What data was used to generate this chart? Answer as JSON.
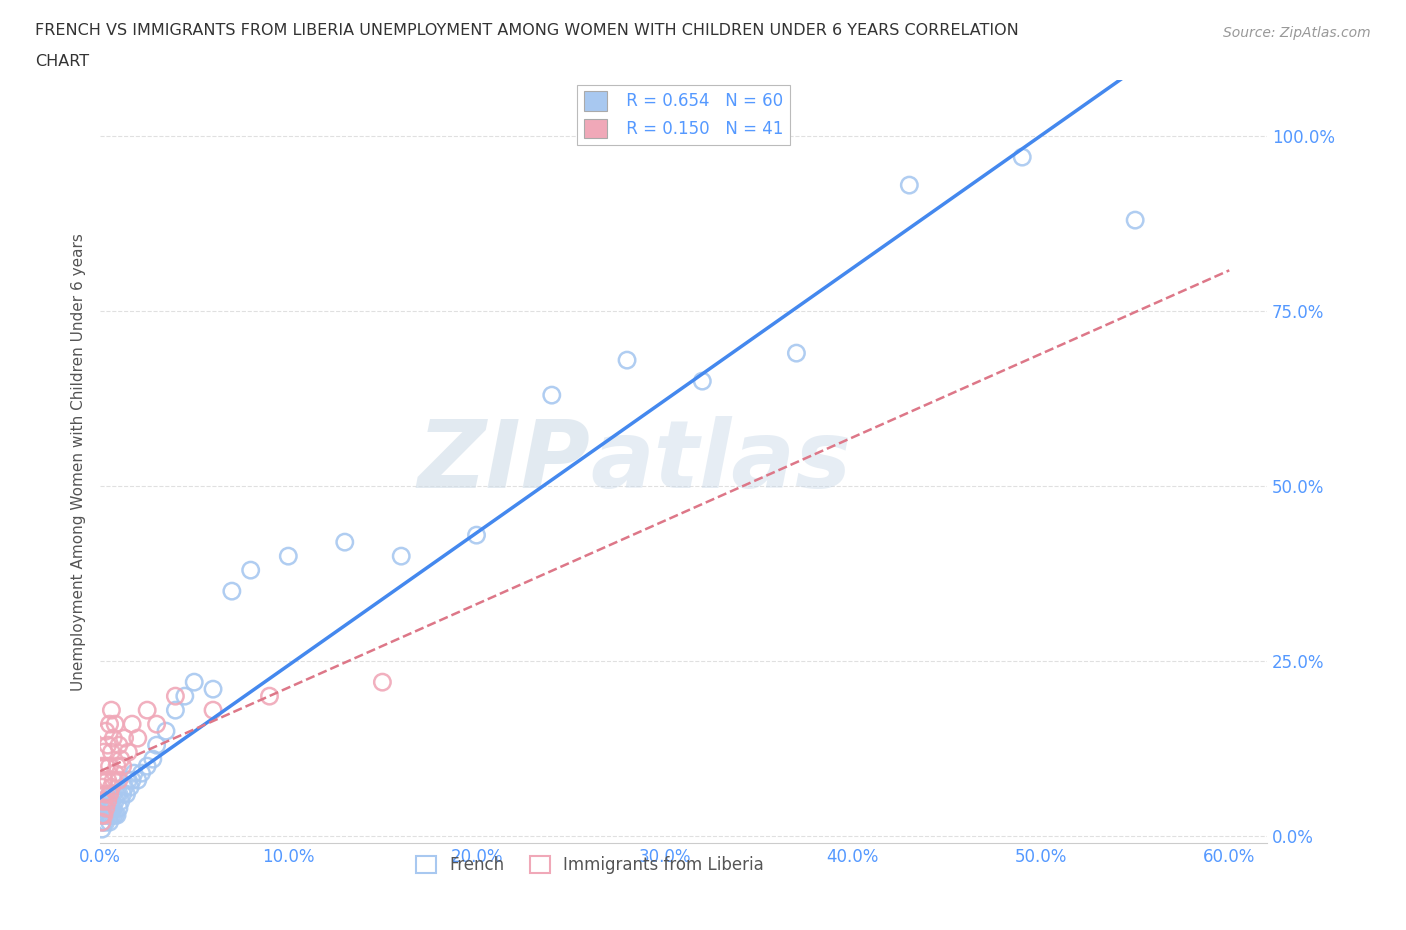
{
  "title_line1": "FRENCH VS IMMIGRANTS FROM LIBERIA UNEMPLOYMENT AMONG WOMEN WITH CHILDREN UNDER 6 YEARS CORRELATION",
  "title_line2": "CHART",
  "source": "Source: ZipAtlas.com",
  "tick_color": "#5599ff",
  "ylabel": "Unemployment Among Women with Children Under 6 years",
  "french_color": "#a8c8f0",
  "french_edge_color": "#7aaedd",
  "liberia_color": "#f0a8b8",
  "liberia_edge_color": "#dd8899",
  "french_line_color": "#4488ee",
  "liberia_line_color": "#dd7788",
  "R_french": 0.654,
  "N_french": 60,
  "R_liberia": 0.15,
  "N_liberia": 41,
  "xlim": [
    0.0,
    0.62
  ],
  "ylim": [
    -0.01,
    1.08
  ],
  "xticks": [
    0.0,
    0.1,
    0.2,
    0.3,
    0.4,
    0.5,
    0.6
  ],
  "yticks": [
    0.0,
    0.25,
    0.5,
    0.75,
    1.0
  ],
  "french_x": [
    0.001,
    0.001,
    0.001,
    0.002,
    0.002,
    0.002,
    0.002,
    0.003,
    0.003,
    0.003,
    0.003,
    0.004,
    0.004,
    0.005,
    0.005,
    0.005,
    0.005,
    0.006,
    0.006,
    0.006,
    0.007,
    0.007,
    0.007,
    0.008,
    0.008,
    0.009,
    0.009,
    0.01,
    0.01,
    0.011,
    0.012,
    0.013,
    0.014,
    0.015,
    0.016,
    0.017,
    0.018,
    0.02,
    0.022,
    0.025,
    0.028,
    0.03,
    0.035,
    0.04,
    0.045,
    0.05,
    0.06,
    0.07,
    0.08,
    0.1,
    0.13,
    0.16,
    0.2,
    0.24,
    0.28,
    0.32,
    0.37,
    0.43,
    0.49,
    0.55
  ],
  "french_y": [
    0.01,
    0.02,
    0.03,
    0.02,
    0.03,
    0.04,
    0.05,
    0.02,
    0.03,
    0.04,
    0.05,
    0.03,
    0.04,
    0.02,
    0.03,
    0.04,
    0.06,
    0.03,
    0.04,
    0.05,
    0.03,
    0.04,
    0.06,
    0.03,
    0.05,
    0.03,
    0.06,
    0.04,
    0.06,
    0.05,
    0.06,
    0.07,
    0.06,
    0.08,
    0.07,
    0.08,
    0.09,
    0.08,
    0.09,
    0.1,
    0.11,
    0.13,
    0.15,
    0.18,
    0.2,
    0.22,
    0.21,
    0.35,
    0.38,
    0.4,
    0.42,
    0.4,
    0.43,
    0.63,
    0.68,
    0.65,
    0.69,
    0.93,
    0.97,
    0.88
  ],
  "liberia_x": [
    0.001,
    0.001,
    0.001,
    0.001,
    0.001,
    0.002,
    0.002,
    0.002,
    0.002,
    0.003,
    0.003,
    0.003,
    0.003,
    0.004,
    0.004,
    0.004,
    0.005,
    0.005,
    0.005,
    0.006,
    0.006,
    0.006,
    0.007,
    0.007,
    0.008,
    0.008,
    0.009,
    0.01,
    0.01,
    0.011,
    0.012,
    0.013,
    0.015,
    0.017,
    0.02,
    0.025,
    0.03,
    0.04,
    0.06,
    0.09,
    0.15
  ],
  "liberia_y": [
    0.02,
    0.03,
    0.05,
    0.07,
    0.1,
    0.03,
    0.05,
    0.08,
    0.12,
    0.04,
    0.06,
    0.1,
    0.15,
    0.05,
    0.08,
    0.13,
    0.06,
    0.1,
    0.16,
    0.07,
    0.12,
    0.18,
    0.08,
    0.14,
    0.09,
    0.16,
    0.1,
    0.08,
    0.13,
    0.11,
    0.1,
    0.14,
    0.12,
    0.16,
    0.14,
    0.18,
    0.16,
    0.2,
    0.18,
    0.2,
    0.22
  ],
  "watermark_zip": "ZIP",
  "watermark_atlas": "atlas",
  "background_color": "#ffffff",
  "grid_color": "#dddddd",
  "bottom_legend_labels": [
    "French",
    "Immigrants from Liberia"
  ]
}
